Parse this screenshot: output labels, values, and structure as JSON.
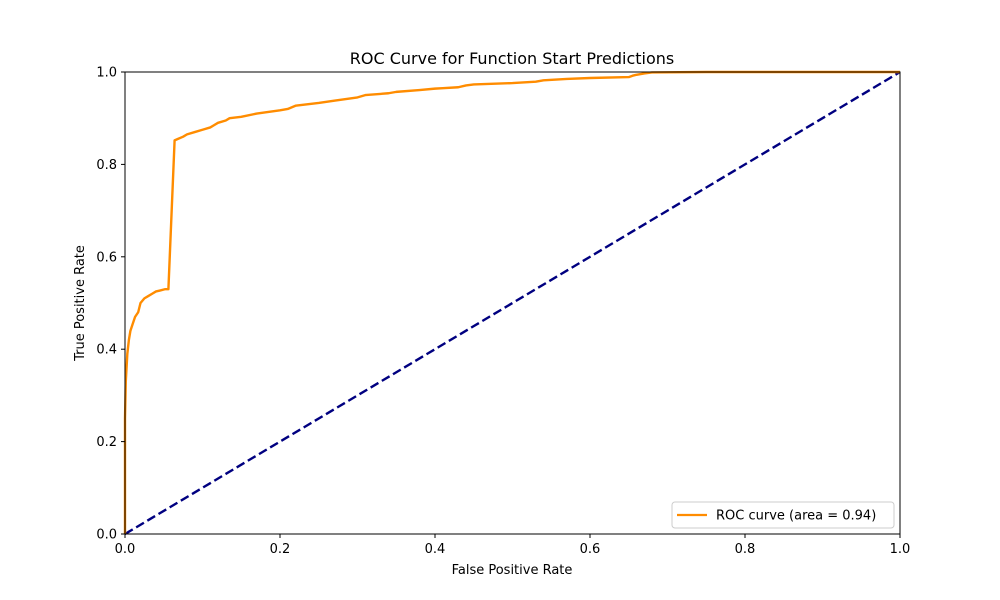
{
  "chart_data": {
    "type": "line",
    "title": "ROC Curve for Function Start Predictions",
    "xlabel": "False Positive Rate",
    "ylabel": "True Positive Rate",
    "xlim": [
      0.0,
      1.0
    ],
    "ylim": [
      0.0,
      1.0
    ],
    "xticks": [
      "0.0",
      "0.2",
      "0.4",
      "0.6",
      "0.8",
      "1.0"
    ],
    "yticks": [
      "0.0",
      "0.2",
      "0.4",
      "0.6",
      "0.8",
      "1.0"
    ],
    "grid": false,
    "legend_position": "lower-right",
    "series": [
      {
        "name": "ROC curve (area = 0.94)",
        "color": "#ff8c00",
        "line_style": "solid",
        "x": [
          0.0,
          0.0,
          0.001,
          0.002,
          0.003,
          0.005,
          0.007,
          0.01,
          0.013,
          0.017,
          0.02,
          0.025,
          0.03,
          0.035,
          0.04,
          0.045,
          0.052,
          0.056,
          0.064,
          0.068,
          0.075,
          0.08,
          0.09,
          0.1,
          0.11,
          0.115,
          0.12,
          0.13,
          0.135,
          0.15,
          0.17,
          0.2,
          0.21,
          0.22,
          0.25,
          0.27,
          0.3,
          0.31,
          0.34,
          0.35,
          0.38,
          0.4,
          0.41,
          0.43,
          0.44,
          0.45,
          0.5,
          0.53,
          0.54,
          0.57,
          0.6,
          0.65,
          0.655,
          0.66,
          0.67,
          0.68,
          0.75,
          0.8,
          1.0
        ],
        "y": [
          0.0,
          0.25,
          0.33,
          0.36,
          0.39,
          0.42,
          0.44,
          0.455,
          0.47,
          0.48,
          0.5,
          0.51,
          0.515,
          0.52,
          0.525,
          0.527,
          0.53,
          0.53,
          0.852,
          0.855,
          0.86,
          0.865,
          0.87,
          0.875,
          0.88,
          0.885,
          0.89,
          0.895,
          0.9,
          0.903,
          0.91,
          0.917,
          0.92,
          0.927,
          0.933,
          0.938,
          0.945,
          0.95,
          0.954,
          0.957,
          0.961,
          0.964,
          0.965,
          0.967,
          0.971,
          0.973,
          0.976,
          0.979,
          0.982,
          0.985,
          0.987,
          0.989,
          0.992,
          0.994,
          0.997,
          0.999,
          1.0,
          1.0,
          1.0
        ]
      },
      {
        "name": "",
        "color": "#000080",
        "line_style": "dashed",
        "x": [
          0.0,
          1.0
        ],
        "y": [
          0.0,
          1.0
        ]
      }
    ],
    "legend": [
      {
        "label": "ROC curve (area = 0.94)",
        "color": "#ff8c00"
      }
    ]
  }
}
